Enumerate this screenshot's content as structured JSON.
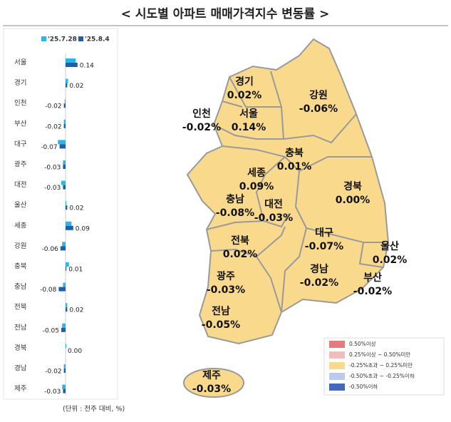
{
  "title": "< 시도별 아파트 매매가격지수 변동률 >",
  "chart_data": {
    "type": "bar",
    "orientation": "horizontal",
    "categories": [
      "서울",
      "경기",
      "인천",
      "부산",
      "대구",
      "광주",
      "대전",
      "울산",
      "세종",
      "강원",
      "충북",
      "충남",
      "전북",
      "전남",
      "경북",
      "경남",
      "제주"
    ],
    "series": [
      {
        "name": "'25.7.28",
        "color": "#29b6e8",
        "values": [
          0.12,
          0.03,
          -0.01,
          -0.02,
          -0.09,
          -0.03,
          -0.05,
          0.01,
          0.07,
          -0.04,
          0.04,
          -0.03,
          0.02,
          -0.04,
          0.01,
          -0.02,
          -0.04
        ]
      },
      {
        "name": "'25.8.4",
        "color": "#1f5fa8",
        "values": [
          0.14,
          0.02,
          -0.02,
          -0.02,
          -0.07,
          -0.03,
          -0.03,
          0.02,
          0.09,
          -0.06,
          0.01,
          -0.08,
          0.02,
          -0.05,
          0.0,
          -0.02,
          -0.03
        ],
        "value_labels": [
          "0.14",
          "0.02",
          "-0.02",
          "-0.02",
          "-0.07",
          "-0.03",
          "-0.03",
          "0.02",
          "0.09",
          "-0.06",
          "0.01",
          "-0.08",
          "0.02",
          "-0.05",
          "0.00",
          "-0.02",
          "-0.03"
        ]
      }
    ],
    "xlim": [
      -0.1,
      0.15
    ]
  },
  "map": {
    "regions": [
      {
        "name": "경기",
        "label": "0.02%"
      },
      {
        "name": "강원",
        "label": "-0.06%"
      },
      {
        "name": "인천",
        "label": "-0.02%"
      },
      {
        "name": "서울",
        "label": "0.14%"
      },
      {
        "name": "충북",
        "label": "0.01%"
      },
      {
        "name": "세종",
        "label": "0.09%"
      },
      {
        "name": "경북",
        "label": "0.00%"
      },
      {
        "name": "충남",
        "label": "-0.08%"
      },
      {
        "name": "대전",
        "label": "-0.03%"
      },
      {
        "name": "전북",
        "label": "0.02%"
      },
      {
        "name": "대구",
        "label": "-0.07%"
      },
      {
        "name": "울산",
        "label": "0.02%"
      },
      {
        "name": "경남",
        "label": "-0.02%"
      },
      {
        "name": "부산",
        "label": "-0.02%"
      },
      {
        "name": "광주",
        "label": "-0.03%"
      },
      {
        "name": "전남",
        "label": "-0.05%"
      },
      {
        "name": "제주",
        "label": "-0.03%"
      }
    ],
    "legend": [
      {
        "label": "0.50%이상",
        "color": "#e57b7b"
      },
      {
        "label": "0.25%이상 ~ 0.50%미만",
        "color": "#f3bcbc"
      },
      {
        "label": "-0.25%초과 ~ 0.25%미만",
        "color": "#f9d98c"
      },
      {
        "label": "-0.50%초과 ~ -0.25%이하",
        "color": "#bccbe8"
      },
      {
        "label": "-0.50%이하",
        "color": "#4468bd"
      }
    ]
  },
  "note": "(단위 : 전주 대비, %)"
}
